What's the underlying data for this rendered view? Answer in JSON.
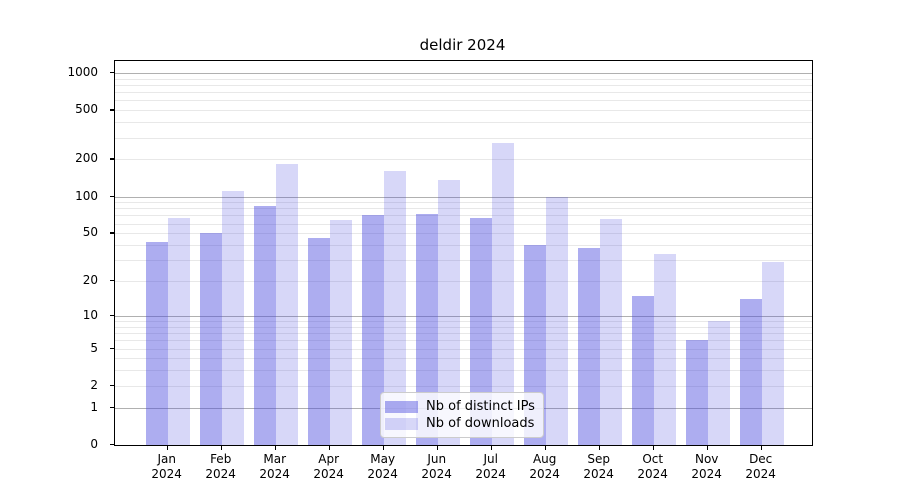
{
  "title": "deldir 2024",
  "legend": {
    "items": [
      {
        "label": "Nb of distinct IPs"
      },
      {
        "label": "Nb of downloads"
      }
    ]
  },
  "colors": {
    "series_ips": "#acacf0",
    "series_downloads": "#d7d7f7",
    "series_ips_fill": "rgba(68,68,221,0.44)",
    "series_downloads_fill": "rgba(68,68,221,0.21)",
    "major_grid": "#b0b0b0",
    "minor_grid": "#e8e8e8",
    "spine": "#000000",
    "background": "#ffffff"
  },
  "chart_data": {
    "type": "bar",
    "title": "deldir 2024",
    "categories": [
      {
        "month": "Jan",
        "year": "2024"
      },
      {
        "month": "Feb",
        "year": "2024"
      },
      {
        "month": "Mar",
        "year": "2024"
      },
      {
        "month": "Apr",
        "year": "2024"
      },
      {
        "month": "May",
        "year": "2024"
      },
      {
        "month": "Jun",
        "year": "2024"
      },
      {
        "month": "Jul",
        "year": "2024"
      },
      {
        "month": "Aug",
        "year": "2024"
      },
      {
        "month": "Sep",
        "year": "2024"
      },
      {
        "month": "Oct",
        "year": "2024"
      },
      {
        "month": "Nov",
        "year": "2024"
      },
      {
        "month": "Dec",
        "year": "2024"
      }
    ],
    "series": [
      {
        "name": "Nb of distinct IPs",
        "color": "#acacf0",
        "fill": "rgba(68,68,221,0.44)",
        "values": [
          42,
          50,
          84,
          46,
          71,
          72,
          67,
          40,
          38,
          15,
          6,
          14
        ]
      },
      {
        "name": "Nb of downloads",
        "color": "#d7d7f7",
        "fill": "rgba(68,68,221,0.21)",
        "values": [
          67,
          110,
          183,
          64,
          160,
          136,
          272,
          100,
          66,
          34,
          9,
          29
        ]
      }
    ],
    "xlabel": "",
    "ylabel": "",
    "yscale": "log1p",
    "ylim": [
      0,
      1250
    ],
    "yticks": [
      0,
      1,
      2,
      5,
      10,
      20,
      50,
      100,
      200,
      500,
      1000
    ],
    "major_gridlines": [
      1,
      10,
      100,
      1000
    ],
    "minor_gridlines": [
      2,
      3,
      4,
      5,
      6,
      7,
      8,
      9,
      20,
      30,
      40,
      50,
      60,
      70,
      80,
      90,
      200,
      300,
      400,
      500,
      600,
      700,
      800,
      900
    ],
    "grid": true,
    "legend_position": "lower center"
  }
}
